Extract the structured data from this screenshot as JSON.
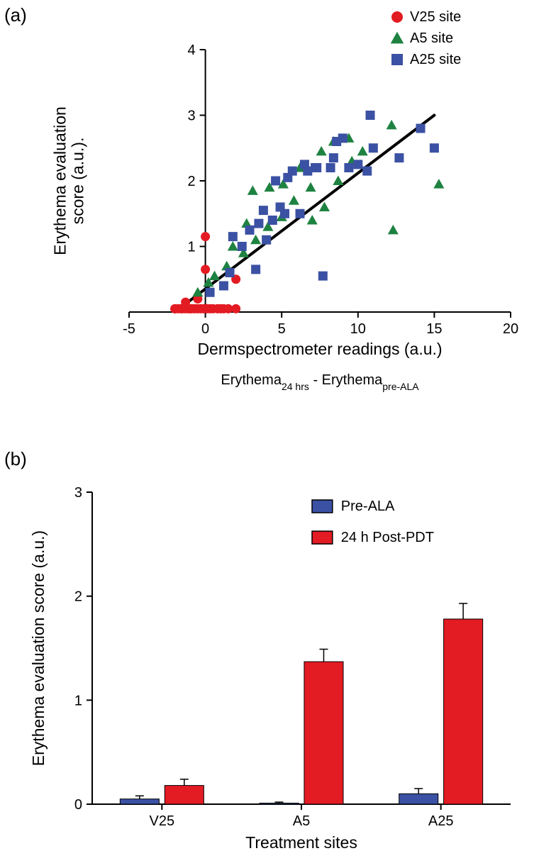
{
  "labels": {
    "panel_a": "(a)",
    "panel_b": "(b)"
  },
  "scatter": {
    "type": "scatter",
    "xlim": [
      -5,
      20
    ],
    "ylim": [
      0,
      4
    ],
    "xticks": [
      -5,
      0,
      5,
      10,
      15,
      20
    ],
    "yticks": [
      1,
      2,
      3,
      4
    ],
    "x_label": "Dermspectrometer readings (a.u.)",
    "y_label_line1": "Erythema evaluation",
    "y_label_line2": "score (a.u.).",
    "caption_plain_pre": "Erythema",
    "caption_sub1": "24 hrs",
    "caption_plain_mid": " - Erythema",
    "caption_sub2": "pre-ALA",
    "axis_fontsize": 23,
    "tick_fontsize": 20,
    "axis_color": "#000000",
    "axis_width": 2,
    "tick_length": 8,
    "marker_size": 13,
    "trend_line": {
      "x1": -2,
      "y1": 0,
      "x2": 15,
      "y2": 3,
      "color": "#000000",
      "width": 4
    },
    "legend": {
      "items": [
        {
          "label": "V25 site",
          "marker": "circle",
          "color": "#e31b23"
        },
        {
          "label": "A5 site",
          "marker": "triangle",
          "color": "#1e8241"
        },
        {
          "label": "A25 site",
          "marker": "square",
          "color": "#3b51a3"
        }
      ],
      "fontsize": 20
    },
    "series": [
      {
        "name": "V25 site",
        "marker": "circle",
        "color": "#e31b23",
        "points": [
          [
            -2,
            0.05
          ],
          [
            -1.8,
            0.05
          ],
          [
            -1.6,
            0.05
          ],
          [
            -1.5,
            0.05
          ],
          [
            -1.3,
            0.05
          ],
          [
            -1.1,
            0.05
          ],
          [
            -1,
            0.05
          ],
          [
            -0.9,
            0.05
          ],
          [
            -0.7,
            0.05
          ],
          [
            -0.5,
            0.05
          ],
          [
            -0.3,
            0.05
          ],
          [
            -0.1,
            0.05
          ],
          [
            0.1,
            0.05
          ],
          [
            0.3,
            0.05
          ],
          [
            0.5,
            0.05
          ],
          [
            0.8,
            0.05
          ],
          [
            1.0,
            0.05
          ],
          [
            1.2,
            0.05
          ],
          [
            1.5,
            0.05
          ],
          [
            2.0,
            0.05
          ],
          [
            -1.3,
            0.15
          ],
          [
            -0.5,
            0.2
          ],
          [
            0,
            1.15
          ],
          [
            0,
            0.65
          ],
          [
            2,
            0.5
          ]
        ]
      },
      {
        "name": "A5 site",
        "marker": "triangle",
        "color": "#1e8241",
        "points": [
          [
            -0.5,
            0.3
          ],
          [
            0.2,
            0.45
          ],
          [
            0.6,
            0.55
          ],
          [
            1.4,
            0.7
          ],
          [
            1.8,
            1.0
          ],
          [
            2.5,
            0.9
          ],
          [
            2.7,
            1.35
          ],
          [
            3.1,
            1.85
          ],
          [
            3.3,
            1.1
          ],
          [
            4.1,
            1.3
          ],
          [
            4.2,
            1.9
          ],
          [
            5.0,
            1.45
          ],
          [
            5.1,
            1.95
          ],
          [
            5.8,
            1.7
          ],
          [
            6.2,
            2.2
          ],
          [
            6.9,
            1.9
          ],
          [
            7.0,
            1.4
          ],
          [
            7.6,
            2.45
          ],
          [
            7.8,
            1.6
          ],
          [
            8.4,
            2.6
          ],
          [
            8.7,
            2.0
          ],
          [
            9.4,
            2.65
          ],
          [
            9.6,
            2.3
          ],
          [
            10.3,
            2.45
          ],
          [
            12.2,
            2.85
          ],
          [
            12.3,
            1.25
          ],
          [
            15.3,
            1.95
          ]
        ]
      },
      {
        "name": "A25 site",
        "marker": "square",
        "color": "#3b51a3",
        "points": [
          [
            0.3,
            0.3
          ],
          [
            1.2,
            0.4
          ],
          [
            1.6,
            0.6
          ],
          [
            1.8,
            1.15
          ],
          [
            2.4,
            1.0
          ],
          [
            2.9,
            1.25
          ],
          [
            3.3,
            0.65
          ],
          [
            3.5,
            1.35
          ],
          [
            3.8,
            1.55
          ],
          [
            4.0,
            1.1
          ],
          [
            4.4,
            1.4
          ],
          [
            4.6,
            2.0
          ],
          [
            4.9,
            1.6
          ],
          [
            5.2,
            1.5
          ],
          [
            5.4,
            2.05
          ],
          [
            5.7,
            2.15
          ],
          [
            6.2,
            1.5
          ],
          [
            6.5,
            2.25
          ],
          [
            6.7,
            2.15
          ],
          [
            7.2,
            2.2
          ],
          [
            7.3,
            2.2
          ],
          [
            7.7,
            0.55
          ],
          [
            8.2,
            2.2
          ],
          [
            8.4,
            2.35
          ],
          [
            8.6,
            2.6
          ],
          [
            9.0,
            2.65
          ],
          [
            9.4,
            2.2
          ],
          [
            10.0,
            2.25
          ],
          [
            10.6,
            2.15
          ],
          [
            10.8,
            3.0
          ],
          [
            11.0,
            2.5
          ],
          [
            12.7,
            2.35
          ],
          [
            14.1,
            2.8
          ],
          [
            15.0,
            2.5
          ]
        ]
      }
    ]
  },
  "bars": {
    "type": "bar",
    "categories": [
      "V25",
      "A5",
      "A25"
    ],
    "series": [
      {
        "name": "Pre-ALA",
        "color": "#3b51a3",
        "values": [
          0.05,
          0.01,
          0.1
        ],
        "errors": [
          0.03,
          0.01,
          0.05
        ]
      },
      {
        "name": "24 h Post-PDT",
        "color": "#e31b23",
        "values": [
          0.18,
          1.37,
          1.78
        ],
        "errors": [
          0.06,
          0.12,
          0.15
        ]
      }
    ],
    "ylim": [
      0,
      3
    ],
    "yticks": [
      0,
      1,
      2,
      3
    ],
    "x_label": "Treatment sites",
    "y_label": "Erythema evaluation score (a.u.)",
    "axis_fontsize": 23,
    "tick_fontsize": 20,
    "axis_color": "#000000",
    "axis_width": 2,
    "tick_length": 8,
    "bar_width": 0.28,
    "bar_gap": 0.04,
    "error_cap": 6,
    "legend": {
      "fontsize": 20,
      "box_size": 18,
      "box_stroke": "#000000"
    }
  }
}
